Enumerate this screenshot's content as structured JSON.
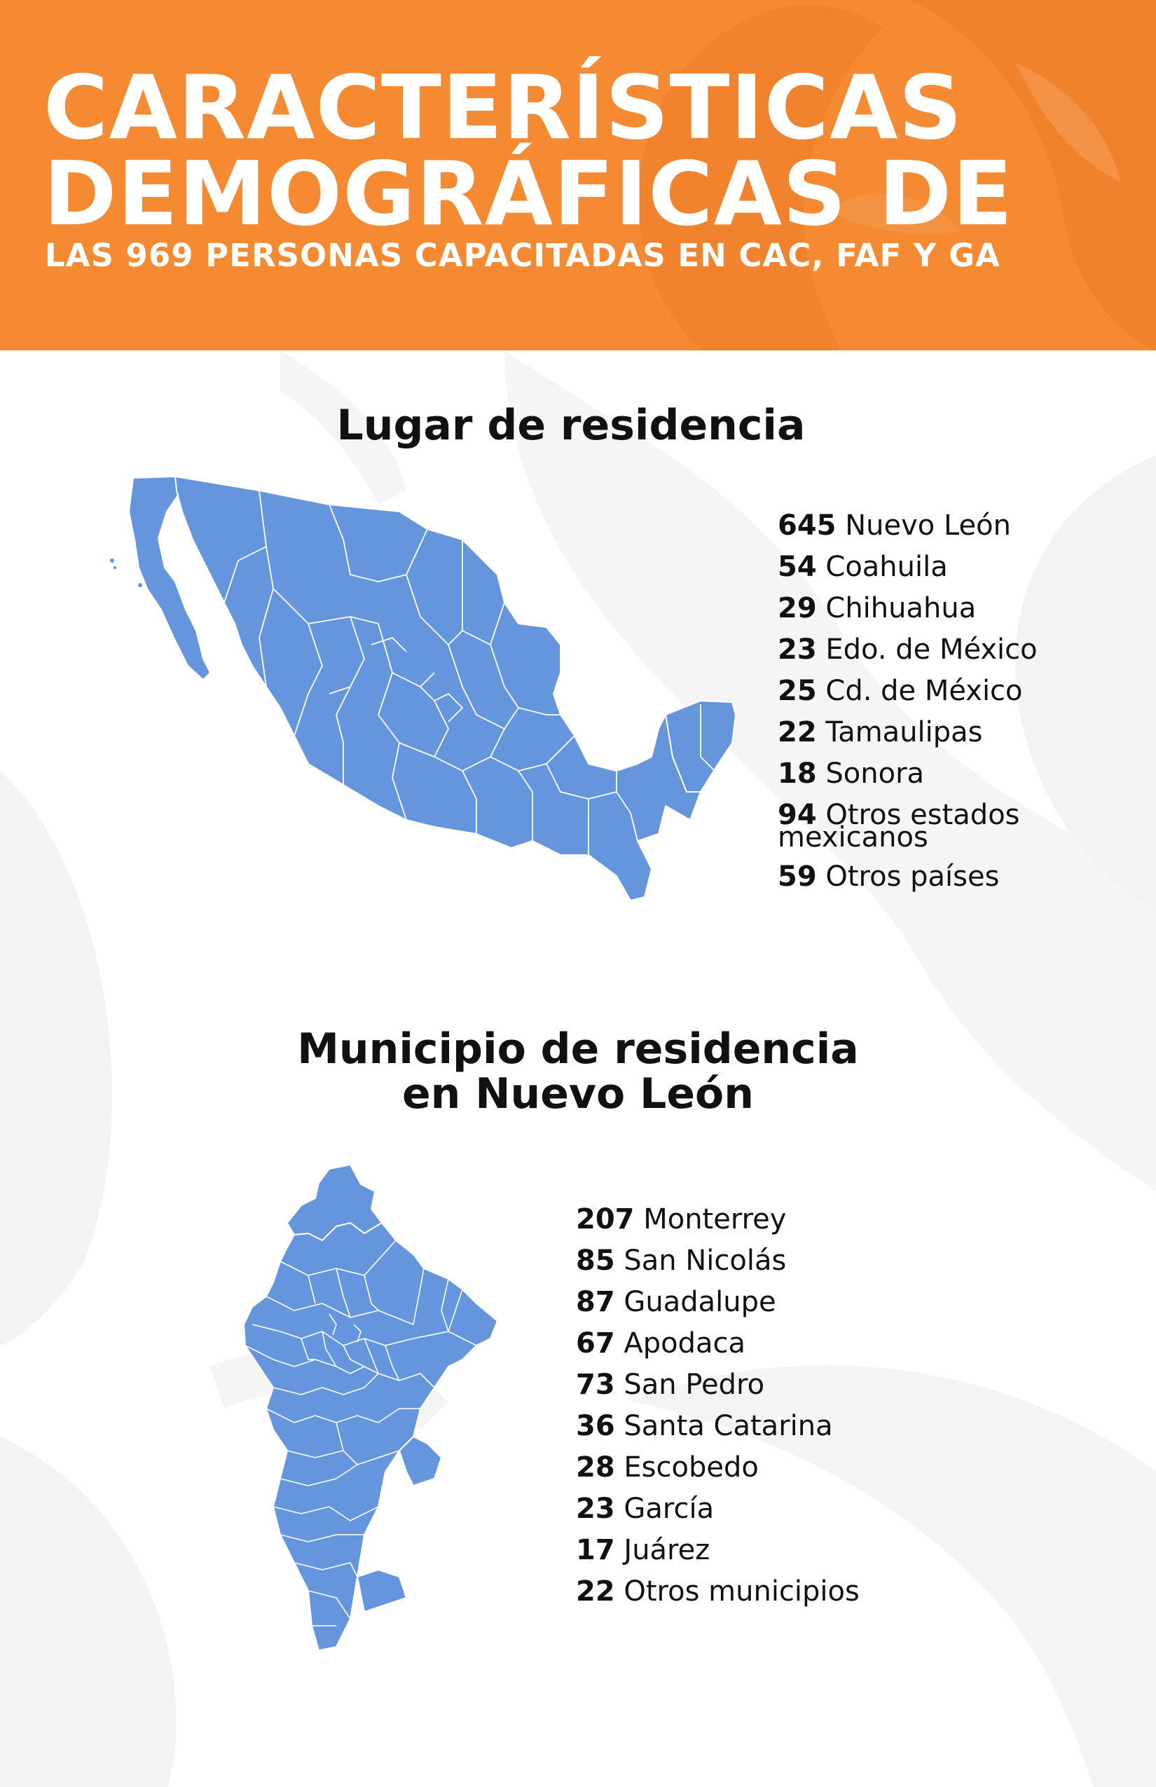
{
  "header": {
    "title_line1": "CARACTERÍSTICAS",
    "title_line2": "DEMOGRÁFICAS DE",
    "subtitle": "LAS 969 PERSONAS CAPACITADAS EN CAC, FAF Y GA"
  },
  "section1": {
    "title": "Lugar de residencia",
    "items": [
      {
        "value": "645",
        "label": "Nuevo León"
      },
      {
        "value": "54",
        "label": "Coahuila"
      },
      {
        "value": "29",
        "label": "Chihuahua"
      },
      {
        "value": "23",
        "label": "Edo. de México"
      },
      {
        "value": "25",
        "label": "Cd. de México"
      },
      {
        "value": "22",
        "label": "Tamaulipas"
      },
      {
        "value": "18",
        "label": "Sonora"
      },
      {
        "value": "94",
        "label": "Otros estados mexicanos"
      },
      {
        "value": "59",
        "label": "Otros países"
      }
    ]
  },
  "section2": {
    "title_line1": "Municipio de residencia",
    "title_line2": "en Nuevo León",
    "items": [
      {
        "value": "207",
        "label": "Monterrey"
      },
      {
        "value": "85",
        "label": "San Nicolás"
      },
      {
        "value": "87",
        "label": "Guadalupe"
      },
      {
        "value": "67",
        "label": "Apodaca"
      },
      {
        "value": "73",
        "label": "San Pedro"
      },
      {
        "value": "36",
        "label": "Santa Catarina"
      },
      {
        "value": "28",
        "label": "Escobedo"
      },
      {
        "value": "23",
        "label": "García"
      },
      {
        "value": "17",
        "label": "Juárez"
      },
      {
        "value": "22",
        "label": "Otros municipios"
      }
    ]
  },
  "colors": {
    "header_bg": "#f58a33",
    "map_fill": "#6495dd",
    "map_stroke": "#ffffff",
    "background_shape": "#f3f3f3"
  },
  "icons": {
    "mexico_map": "mexico-states-map",
    "nuevo_leon_map": "nuevo-leon-municipalities-map"
  }
}
